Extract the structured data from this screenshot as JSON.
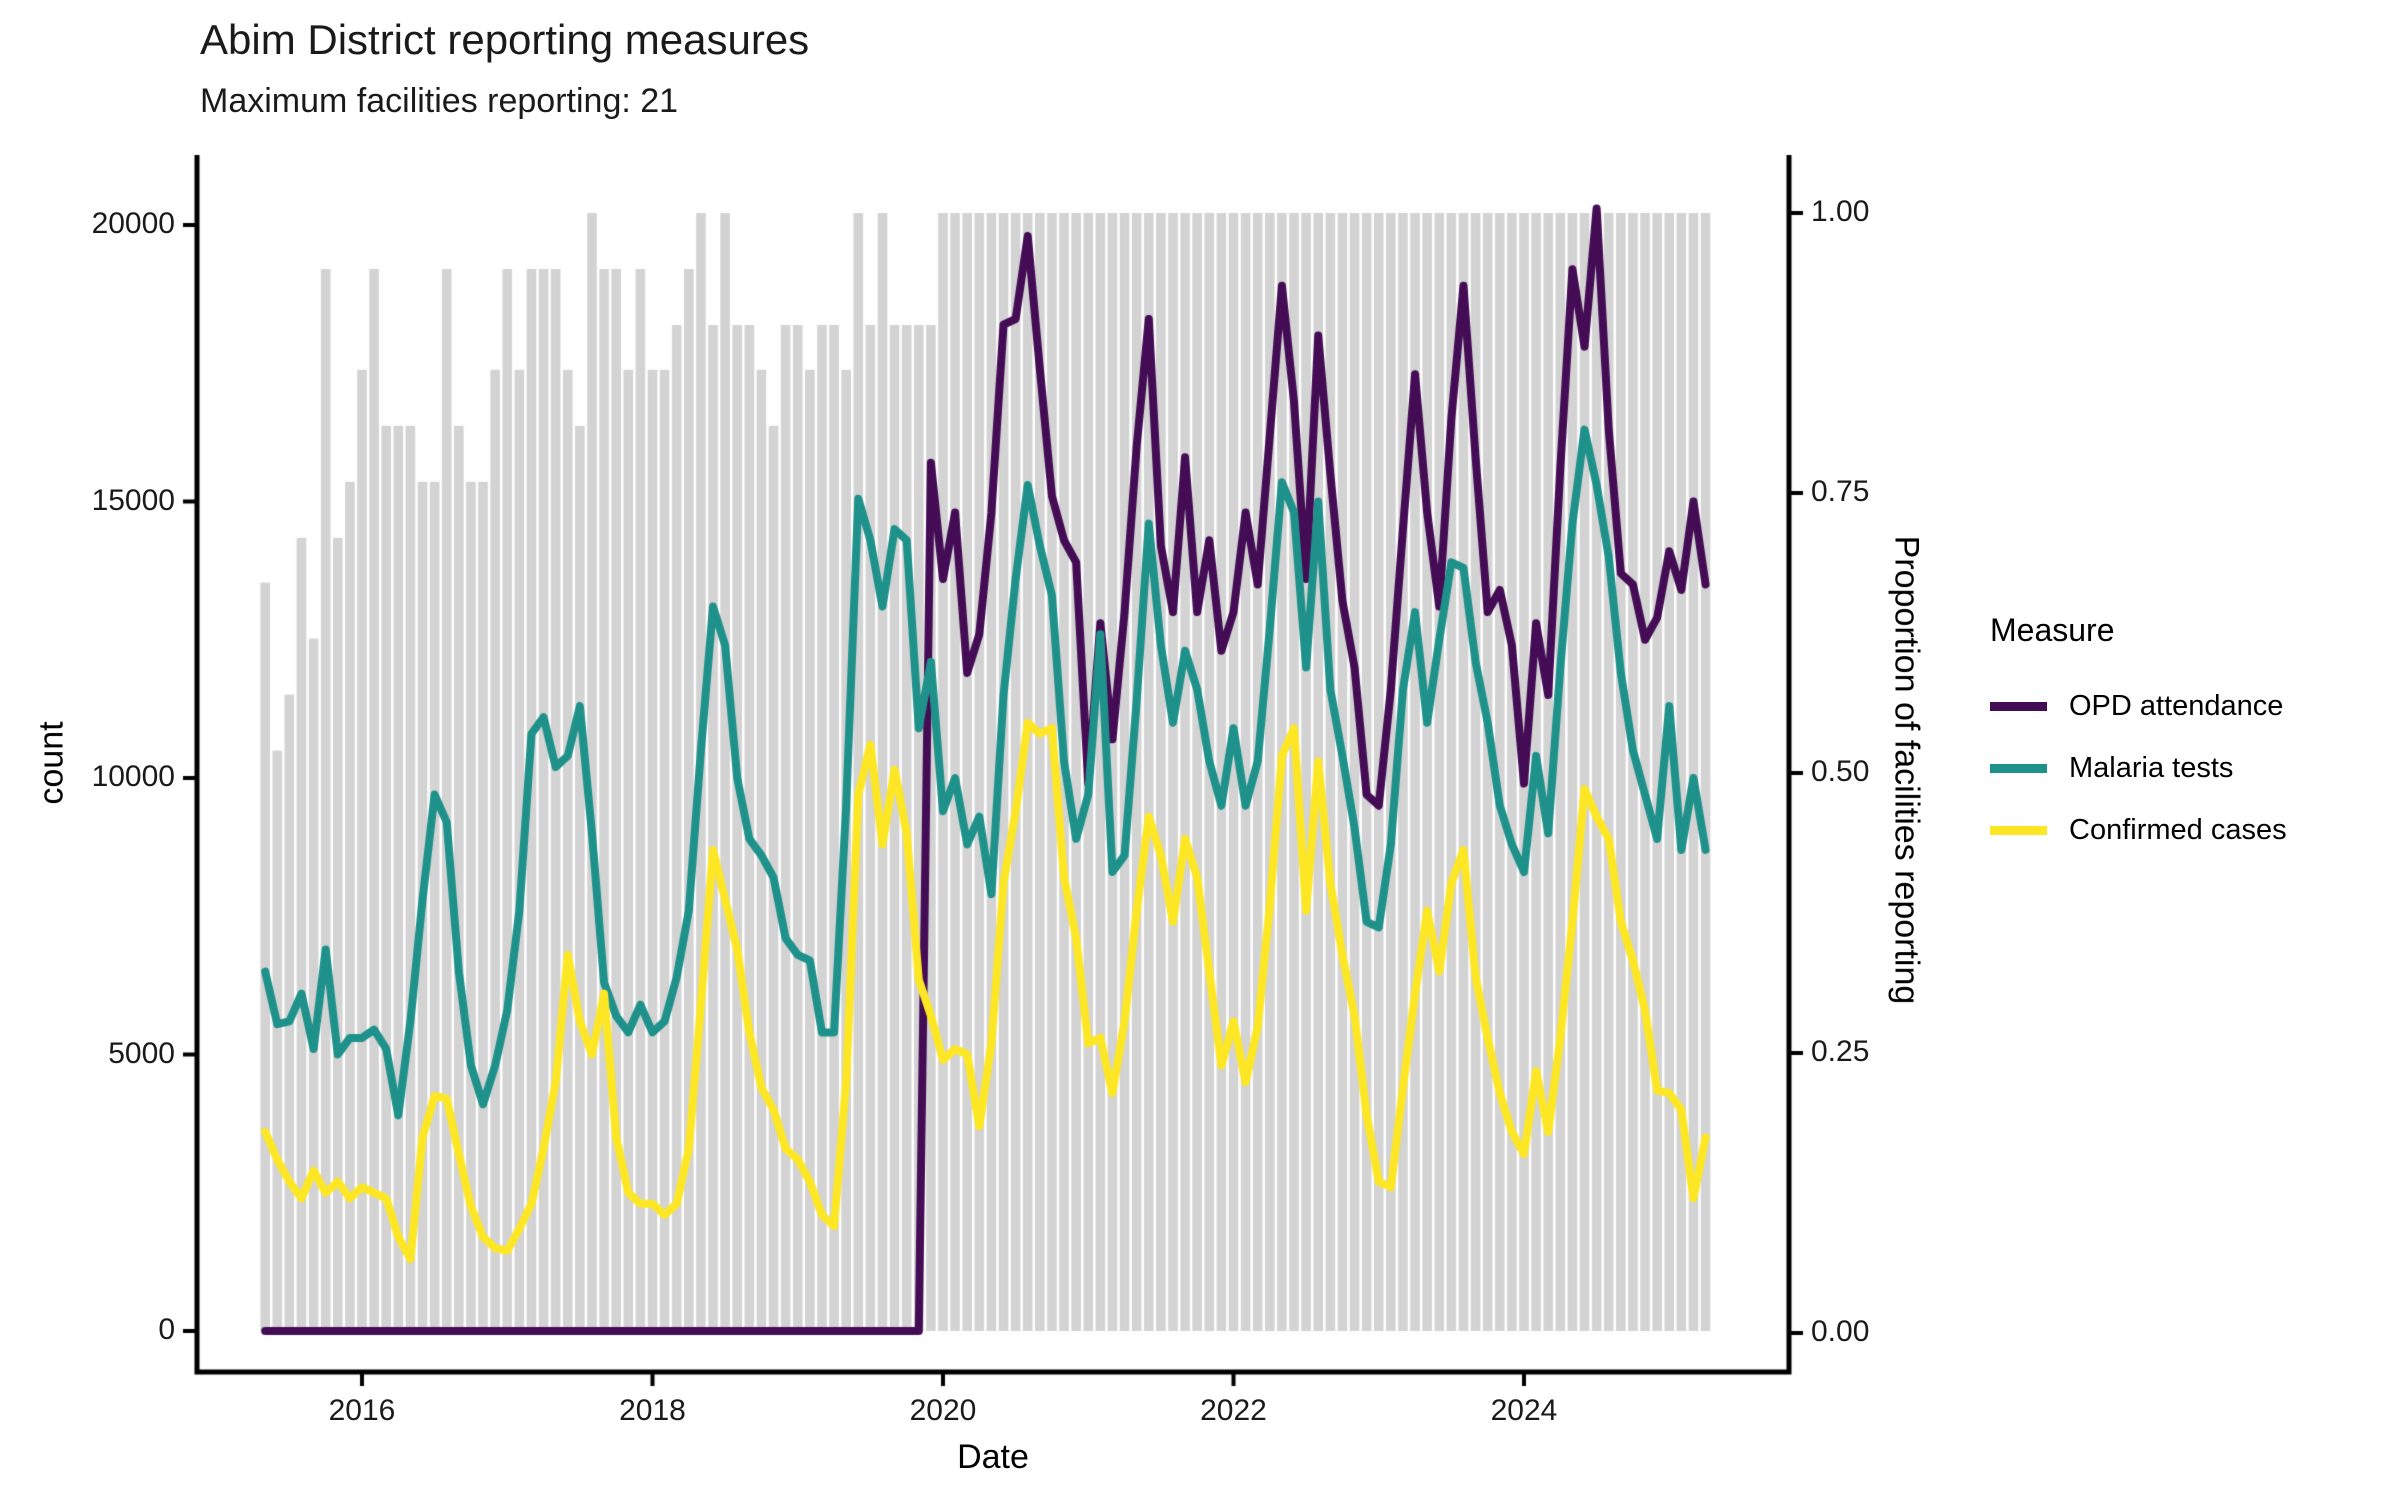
{
  "title": "Abim District reporting measures",
  "subtitle": "Maximum facilities reporting: 21",
  "legend_title": "Measure",
  "chart_data": {
    "type": "line+bar",
    "title": "Abim District reporting measures",
    "subtitle": "Maximum facilities reporting: 21",
    "x": {
      "label": "Date",
      "start": "2015-05",
      "end": "2025-04",
      "freq": "monthly",
      "tick_labels": [
        "2016",
        "2018",
        "2020",
        "2022",
        "2024"
      ],
      "tick_years": [
        2016,
        2018,
        2020,
        2022,
        2024
      ]
    },
    "y_left": {
      "label": "count",
      "lim": [
        0,
        20000
      ],
      "tick_labels": [
        "0",
        "5000",
        "10000",
        "15000",
        "20000"
      ],
      "tick_values": [
        0,
        5000,
        10000,
        15000,
        20000
      ]
    },
    "y_right": {
      "label": "Proportion of facilities reporting",
      "lim": [
        0,
        1
      ],
      "tick_labels": [
        "0.00",
        "0.25",
        "0.50",
        "0.75",
        "1.00"
      ],
      "tick_values": [
        0,
        0.25,
        0.5,
        0.75,
        1
      ]
    },
    "bars": {
      "name": "Proportion of facilities reporting",
      "axis": "right",
      "color": "#d3d3d3",
      "values": [
        0.67,
        0.52,
        0.57,
        0.71,
        0.62,
        0.95,
        0.71,
        0.76,
        0.86,
        0.95,
        0.81,
        0.81,
        0.81,
        0.76,
        0.76,
        0.95,
        0.81,
        0.76,
        0.76,
        0.86,
        0.95,
        0.86,
        0.95,
        0.95,
        0.95,
        0.86,
        0.81,
        1,
        0.95,
        0.95,
        0.86,
        0.95,
        0.86,
        0.86,
        0.9,
        0.95,
        1,
        0.9,
        1,
        0.9,
        0.9,
        0.86,
        0.81,
        0.9,
        0.9,
        0.86,
        0.9,
        0.9,
        0.86,
        1,
        0.9,
        1,
        0.9,
        0.9,
        0.9,
        0.9,
        1,
        1,
        1,
        1,
        1,
        1,
        1,
        1,
        1,
        1,
        1,
        1,
        1,
        1,
        1,
        1,
        1,
        1,
        1,
        1,
        1,
        1,
        1,
        1,
        1,
        1,
        1,
        1,
        1,
        1,
        1,
        1,
        1,
        1,
        1,
        1,
        1,
        1,
        1,
        1,
        1,
        1,
        1,
        1,
        1,
        1,
        1,
        1,
        1,
        1,
        1,
        1,
        1,
        1,
        1,
        1,
        1,
        1,
        1,
        1,
        1,
        1,
        1,
        1
      ]
    },
    "series": [
      {
        "name": "OPD attendance",
        "axis": "left",
        "color": "#440c54",
        "values": [
          0,
          0,
          0,
          0,
          0,
          0,
          0,
          0,
          0,
          0,
          0,
          0,
          0,
          0,
          0,
          0,
          0,
          0,
          0,
          0,
          0,
          0,
          0,
          0,
          0,
          0,
          0,
          0,
          0,
          0,
          0,
          0,
          0,
          0,
          0,
          0,
          0,
          0,
          0,
          0,
          0,
          0,
          0,
          0,
          0,
          0,
          0,
          0,
          0,
          0,
          0,
          0,
          0,
          0,
          0,
          15700,
          13600,
          14800,
          11900,
          12600,
          14800,
          18200,
          18300,
          19800,
          17400,
          15100,
          14300,
          13900,
          9900,
          12800,
          10700,
          13000,
          16000,
          18300,
          14200,
          13000,
          15800,
          13000,
          14300,
          12300,
          13000,
          14800,
          13500,
          16200,
          18900,
          16800,
          13600,
          18000,
          15500,
          13200,
          12000,
          9700,
          9500,
          11600,
          14500,
          17300,
          14800,
          13100,
          16500,
          18900,
          15800,
          13000,
          13400,
          12400,
          9900,
          12800,
          11500,
          15600,
          19200,
          17800,
          20300,
          16300,
          13700,
          13500,
          12500,
          12900,
          14100,
          13400,
          15000,
          13500
        ]
      },
      {
        "name": "Malaria tests",
        "axis": "left",
        "color": "#1f918b",
        "values": [
          6500,
          5550,
          5600,
          6100,
          5100,
          6900,
          5000,
          5300,
          5300,
          5450,
          5100,
          3900,
          5600,
          7800,
          9700,
          9200,
          6500,
          4800,
          4100,
          4800,
          5800,
          7600,
          10800,
          11100,
          10200,
          10400,
          11300,
          9000,
          6300,
          5700,
          5400,
          5900,
          5400,
          5600,
          6400,
          7600,
          10500,
          13100,
          12400,
          10000,
          8900,
          8600,
          8200,
          7100,
          6800,
          6700,
          5400,
          5400,
          9500,
          15050,
          14300,
          13100,
          14500,
          14300,
          10900,
          12100,
          9400,
          10000,
          8800,
          9300,
          7900,
          11500,
          13600,
          15300,
          14200,
          13300,
          10300,
          8900,
          9700,
          12600,
          8300,
          8600,
          11400,
          14600,
          12400,
          11000,
          12300,
          11600,
          10300,
          9500,
          10900,
          9500,
          10300,
          12700,
          15350,
          14800,
          12000,
          15000,
          11600,
          10400,
          9100,
          7400,
          7300,
          8800,
          11600,
          13000,
          11000,
          12500,
          13900,
          13800,
          12100,
          11000,
          9500,
          8800,
          8300,
          10400,
          9000,
          12000,
          14600,
          16300,
          15300,
          14000,
          11900,
          10500,
          9700,
          8900,
          11300,
          8700,
          10000,
          8700
        ]
      },
      {
        "name": "Confirmed cases",
        "axis": "left",
        "color": "#fde725",
        "values": [
          3600,
          3100,
          2700,
          2400,
          2900,
          2500,
          2700,
          2400,
          2600,
          2500,
          2400,
          1700,
          1300,
          3500,
          4250,
          4200,
          3200,
          2250,
          1700,
          1500,
          1450,
          1850,
          2300,
          3300,
          4500,
          6800,
          5600,
          5000,
          6100,
          3500,
          2500,
          2300,
          2300,
          2100,
          2300,
          3300,
          5900,
          8700,
          7800,
          6900,
          5400,
          4400,
          4000,
          3300,
          3100,
          2700,
          2100,
          1900,
          4500,
          9700,
          10600,
          8800,
          10150,
          9000,
          6350,
          5700,
          4900,
          5100,
          5000,
          3700,
          5200,
          8100,
          9400,
          11000,
          10800,
          10900,
          8200,
          7100,
          5200,
          5300,
          4300,
          5600,
          7600,
          9300,
          8600,
          7400,
          8900,
          8200,
          6500,
          4800,
          5600,
          4500,
          5500,
          7700,
          10400,
          10900,
          7600,
          10300,
          8100,
          6800,
          5700,
          3900,
          2700,
          2600,
          4400,
          6100,
          7600,
          6500,
          8100,
          8700,
          6400,
          5300,
          4300,
          3600,
          3200,
          4700,
          3600,
          5300,
          7400,
          9800,
          9300,
          8900,
          7400,
          6700,
          5800,
          4350,
          4300,
          4000,
          2400,
          3500
        ]
      }
    ],
    "style": {
      "bar_color": "#d3d3d3",
      "axis_color": "#000000",
      "background": "#ffffff",
      "line_width": 8
    }
  }
}
